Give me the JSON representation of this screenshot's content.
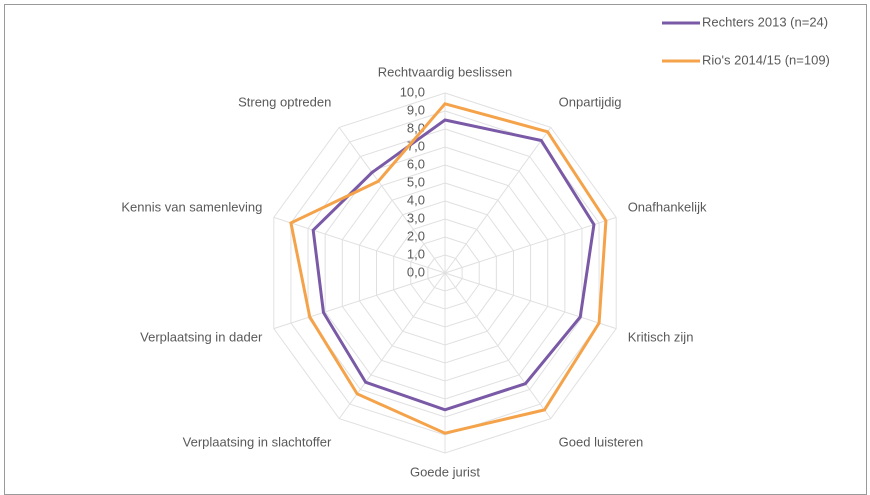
{
  "chart_data": {
    "type": "radar",
    "categories": [
      "Rechtvaardig  beslissen",
      "Onpartijdig",
      "Onafhankelijk",
      "Kritisch zijn",
      "Goed luisteren",
      "Goede jurist",
      "Verplaatsing in slachtoffer",
      "Verplaatsing in dader",
      "Kennis van samenleving",
      "Streng optreden"
    ],
    "series": [
      {
        "name": "Rechters 2013 (n=24)",
        "color": "#7a5aa6",
        "values": [
          8.5,
          9.1,
          8.7,
          7.9,
          7.6,
          7.6,
          7.5,
          7.1,
          7.7,
          6.9
        ]
      },
      {
        "name": "Rio's 2014/15 (n=109)",
        "color": "#f5a34a",
        "values": [
          9.4,
          9.7,
          9.4,
          9.0,
          9.4,
          8.9,
          8.3,
          7.9,
          9.0,
          6.3
        ]
      }
    ],
    "ylim": [
      0,
      10
    ],
    "yticks": [
      {
        "value": 0,
        "label": "0,0"
      },
      {
        "value": 1,
        "label": "1,0"
      },
      {
        "value": 2,
        "label": "2,0"
      },
      {
        "value": 3,
        "label": "3,0"
      },
      {
        "value": 4,
        "label": "4,0"
      },
      {
        "value": 5,
        "label": "5,0"
      },
      {
        "value": 6,
        "label": "6,0"
      },
      {
        "value": 7,
        "label": "7,0"
      },
      {
        "value": 8,
        "label": "8,0"
      },
      {
        "value": 9,
        "label": "9,0"
      },
      {
        "value": 10,
        "label": "10,0"
      }
    ],
    "grid": true,
    "legend": "top-right"
  }
}
